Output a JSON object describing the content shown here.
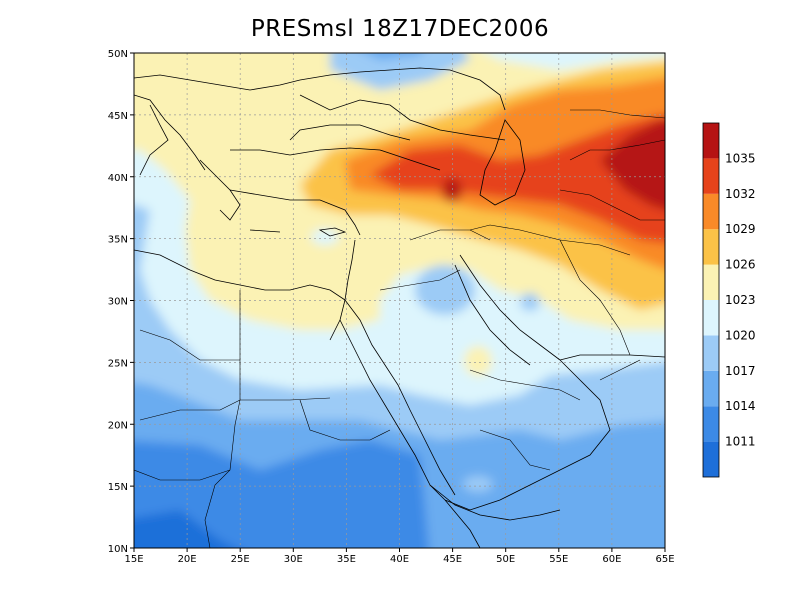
{
  "title": "PRESmsl 18Z17DEC2006",
  "map": {
    "variable": "PRESmsl",
    "lon_range": [
      15,
      65
    ],
    "lat_range": [
      10,
      50
    ],
    "lon_ticks": [
      "15E",
      "20E",
      "25E",
      "30E",
      "35E",
      "40E",
      "45E",
      "50E",
      "55E",
      "60E",
      "65E"
    ],
    "lat_ticks": [
      "10N",
      "15N",
      "20N",
      "25N",
      "30N",
      "35N",
      "40N",
      "45N",
      "50N"
    ],
    "grid": true,
    "levels": [
      {
        "label": "",
        "color": "#1e6fd9"
      },
      {
        "label": "1011",
        "color": "#3c8ae6"
      },
      {
        "label": "1014",
        "color": "#6aacf0"
      },
      {
        "label": "1017",
        "color": "#9ccbf6"
      },
      {
        "label": "1020",
        "color": "#ddf5fd"
      },
      {
        "label": "1023",
        "color": "#fbf2b4"
      },
      {
        "label": "1026",
        "color": "#fbc247"
      },
      {
        "label": "1029",
        "color": "#f98a28"
      },
      {
        "label": "1032",
        "color": "#e6431a"
      },
      {
        "label": "1035",
        "color": "#b51313"
      }
    ],
    "features": [
      {
        "name": "high-pressure-core",
        "label": "1035+",
        "lon": 62,
        "lat": 40
      },
      {
        "name": "caucasus-high",
        "label": "1032+",
        "lon": 45,
        "lat": 38.5
      },
      {
        "name": "arabia-high-spot",
        "label": "1023+",
        "lon": 47,
        "lat": 25
      }
    ]
  }
}
